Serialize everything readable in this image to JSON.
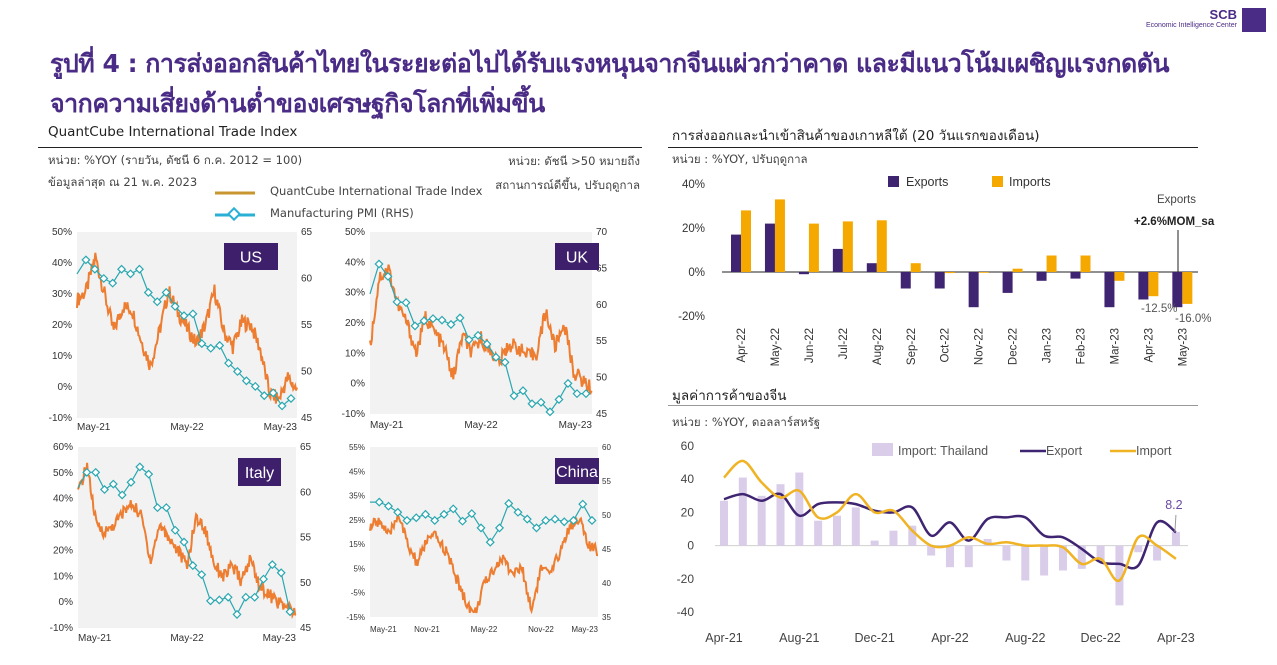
{
  "header": {
    "title_line1": "รูปที่ 4 : การส่งออกสินค้าไทยในระยะต่อไปได้รับแรงหนุนจากจีนแผ่วกว่าคาด และมีแนวโน้มเผชิญแรงกดดัน",
    "title_line2": "จากความเสี่ยงด้านต่ำของเศรษฐกิจโลกที่เพิ่มขึ้น",
    "logo": {
      "brand": "SCB",
      "subtitle": "Economic Intelligence Center"
    }
  },
  "left_panel": {
    "title": "QuantCube International Trade Index",
    "unit_left": "หน่วย: %YOY (รายวัน, ดัชนี 6 ก.ค. 2012 = 100)",
    "latest": "ข้อมูลล่าสุด ณ 21 พ.ค. 2023",
    "unit_right_1": "หน่วย: ดัชนี >50 หมายถึง",
    "unit_right_2": "สถานการณ์ดีขึ้น, ปรับฤดูกาล",
    "legend": [
      "QuantCube International Trade Index",
      "Manufacturing PMI (RHS)"
    ]
  },
  "korea_panel": {
    "title": "การส่งออกและนำเข้าสินค้าของเกาหลีใต้  (20 วันแรกของเดือน)",
    "unit": "หน่วย : %YOY, ปรับฤดูกาล"
  },
  "china_panel": {
    "title": "มูลค่าการค้าของจีน",
    "unit": "หน่วย : %YOY, ดอลลาร์สหรัฐ"
  },
  "colors": {
    "purple": "#3f2472",
    "orange_line": "#ed7d31",
    "teal": "#2aa7b0",
    "amber": "#f5a800",
    "lavender": "#d9cdea",
    "import_line": "#f0b323"
  },
  "chart_data": [
    {
      "type": "line",
      "label": "US",
      "x_ticks": [
        "May-21",
        "May-22",
        "May-23"
      ],
      "y_left": {
        "range": [
          -10,
          50
        ],
        "ticks": [
          "-10%",
          "0%",
          "10%",
          "20%",
          "30%",
          "40%",
          "50%"
        ]
      },
      "y_right": {
        "range": [
          45,
          65
        ],
        "ticks": [
          "45",
          "50",
          "55",
          "60",
          "65"
        ]
      },
      "series": [
        {
          "name": "QuantCube International Trade Index",
          "values": [
            28,
            31,
            42,
            30,
            18,
            26,
            25,
            15,
            7,
            18,
            31,
            24,
            19,
            14,
            20,
            31,
            18,
            13,
            21,
            20,
            12,
            -2,
            -4,
            3,
            -1
          ]
        },
        {
          "name": "Manufacturing PMI (RHS)",
          "values": [
            60.5,
            62,
            61,
            60,
            59.5,
            61,
            60.5,
            61,
            58.5,
            57.5,
            58.5,
            57,
            56,
            56.2,
            53,
            52.5,
            52.8,
            50.9,
            50,
            49,
            48.4,
            47.4,
            47.7,
            46.3,
            47.1
          ]
        }
      ]
    },
    {
      "type": "line",
      "label": "UK",
      "x_ticks": [
        "May-21",
        "May-22",
        "May-23"
      ],
      "y_left": {
        "range": [
          -10,
          50
        ],
        "ticks": [
          "-10%",
          "0%",
          "10%",
          "20%",
          "30%",
          "40%",
          "50%"
        ]
      },
      "y_right": {
        "range": [
          45,
          70
        ],
        "ticks": [
          "45",
          "50",
          "55",
          "60",
          "65",
          "70"
        ]
      },
      "series": [
        {
          "name": "QuantCube International Trade Index",
          "values": [
            12,
            35,
            38,
            26,
            20,
            10,
            22,
            17,
            12,
            2,
            16,
            10,
            15,
            11,
            7,
            13,
            12,
            9,
            10,
            24,
            12,
            20,
            4,
            1,
            -2
          ]
        },
        {
          "name": "Manufacturing PMI (RHS)",
          "values": [
            61.5,
            65.6,
            63.9,
            60.4,
            60.3,
            57.1,
            57.8,
            58.1,
            57.9,
            57.3,
            58.2,
            55.2,
            55.8,
            54.6,
            52.8,
            52.1,
            47.5,
            48.2,
            46.4,
            46.6,
            45.3,
            47,
            49.2,
            47.8,
            47.8
          ]
        }
      ]
    },
    {
      "type": "line",
      "label": "Italy",
      "x_ticks": [
        "May-21",
        "May-22",
        "May-23"
      ],
      "y_left": {
        "range": [
          -10,
          60
        ],
        "ticks": [
          "-10%",
          "0%",
          "10%",
          "20%",
          "30%",
          "40%",
          "50%",
          "60%"
        ]
      },
      "y_right": {
        "range": [
          45,
          65
        ],
        "ticks": [
          "45",
          "50",
          "55",
          "60",
          "65"
        ]
      },
      "series": [
        {
          "name": "QuantCube International Trade Index",
          "values": [
            42,
            53,
            30,
            27,
            30,
            35,
            38,
            33,
            16,
            30,
            25,
            20,
            14,
            33,
            28,
            15,
            10,
            14,
            8,
            17,
            6,
            3,
            0,
            -2,
            -5
          ]
        },
        {
          "name": "Manufacturing PMI (RHS)",
          "values": [
            60.5,
            62.2,
            62.2,
            60.3,
            60.9,
            59.7,
            61.1,
            62.8,
            62,
            58.3,
            58.3,
            55.8,
            54.5,
            51.9,
            50.9,
            48,
            48.1,
            48.4,
            46.5,
            48.4,
            48.4,
            50.4,
            52,
            51.1,
            46.8
          ]
        }
      ]
    },
    {
      "type": "line",
      "label": "China",
      "x_ticks": [
        "May-21",
        "Nov-21",
        "May-22",
        "Nov-22",
        "May-23"
      ],
      "y_left": {
        "range": [
          -15,
          55
        ],
        "ticks": [
          "-15%",
          "-5%",
          "5%",
          "15%",
          "25%",
          "35%",
          "45%",
          "55%"
        ]
      },
      "y_right": {
        "range": [
          35,
          60
        ],
        "ticks": [
          "35",
          "40",
          "45",
          "50",
          "55",
          "60"
        ]
      },
      "series": [
        {
          "name": "QuantCube International Trade Index",
          "values": [
            22,
            25,
            18,
            28,
            14,
            7,
            17,
            18,
            12,
            2,
            -8,
            -14,
            -2,
            5,
            9,
            3,
            5,
            -12,
            5,
            2,
            12,
            22,
            26,
            14,
            12
          ]
        },
        {
          "name": "Manufacturing PMI (RHS)",
          "values": [
            51.9,
            51.9,
            51.3,
            50.4,
            49.2,
            49.6,
            50.1,
            49.2,
            50.1,
            50.9,
            49.1,
            50.2,
            48.1,
            46,
            48.1,
            51.7,
            50.4,
            49.4,
            48.1,
            49.2,
            49.4,
            49,
            49.2,
            51.6,
            49.2
          ]
        }
      ]
    },
    {
      "type": "bar",
      "categories": [
        "Apr-22",
        "May-22",
        "Jun-22",
        "Jul-22",
        "Aug-22",
        "Sep-22",
        "Oct-22",
        "Nov-22",
        "Dec-22",
        "Jan-23",
        "Feb-23",
        "Mar-23",
        "Apr-23",
        "May-23"
      ],
      "ylim": [
        -20,
        40
      ],
      "y_ticks": [
        "-20%",
        "0%",
        "20%",
        "40%"
      ],
      "legend_position": "top",
      "series": [
        {
          "name": "Exports",
          "values": [
            17,
            22,
            -1,
            10.5,
            4,
            -7.5,
            -7.5,
            -16,
            -9.5,
            -4,
            -3,
            -16,
            -12.5,
            -16
          ]
        },
        {
          "name": "Imports",
          "values": [
            28,
            33,
            22,
            23,
            23.5,
            4,
            -0.5,
            0,
            1.5,
            7.5,
            7.5,
            -4,
            -11,
            -14.5
          ]
        }
      ],
      "annotations": {
        "callout_title": "Exports",
        "callout_value": "+2.6%MOM_sa",
        "label_apr": "-12.5%",
        "label_may": "-16.0%"
      }
    },
    {
      "type": "bar+line",
      "categories": [
        "Apr-21",
        "May-21",
        "Jun-21",
        "Jul-21",
        "Aug-21",
        "Sep-21",
        "Oct-21",
        "Nov-21",
        "Dec-21",
        "Jan-22",
        "Feb-22",
        "Mar-22",
        "Apr-22",
        "May-22",
        "Jun-22",
        "Jul-22",
        "Aug-22",
        "Sep-22",
        "Oct-22",
        "Nov-22",
        "Dec-22",
        "Jan-23",
        "Feb-23",
        "Mar-23",
        "Apr-23"
      ],
      "x_tick_labels": [
        "Apr-21",
        "Aug-21",
        "Dec-21",
        "Apr-22",
        "Aug-22",
        "Dec-22",
        "Apr-23"
      ],
      "ylim": [
        -40,
        60
      ],
      "y_ticks": [
        "-40",
        "-20",
        "0",
        "20",
        "40",
        "60"
      ],
      "legend_position": "top-right",
      "series": [
        {
          "name": "Import: Thailand",
          "type": "bar",
          "values": [
            27,
            41,
            30,
            37,
            44,
            15,
            18,
            23,
            3,
            9,
            12,
            -6,
            -13,
            -13,
            4,
            -9,
            -21,
            -18,
            -15,
            -14,
            -9,
            -36,
            -4,
            -9,
            8.2
          ]
        },
        {
          "name": "Export",
          "type": "line",
          "values": [
            28,
            31,
            27,
            31,
            18,
            25,
            26,
            25,
            21,
            20,
            23,
            6,
            14,
            3,
            16,
            17,
            17,
            6,
            5,
            -2,
            -10,
            -11,
            -12,
            14,
            8
          ]
        },
        {
          "name": "Import",
          "type": "line",
          "values": [
            41,
            51,
            38,
            29,
            33,
            17,
            20,
            31,
            20,
            21,
            9,
            0,
            0,
            5,
            1,
            2,
            0,
            0,
            -1,
            -11,
            -8,
            -21,
            5,
            0,
            -8
          ]
        }
      ],
      "data_label": "8.2"
    }
  ]
}
